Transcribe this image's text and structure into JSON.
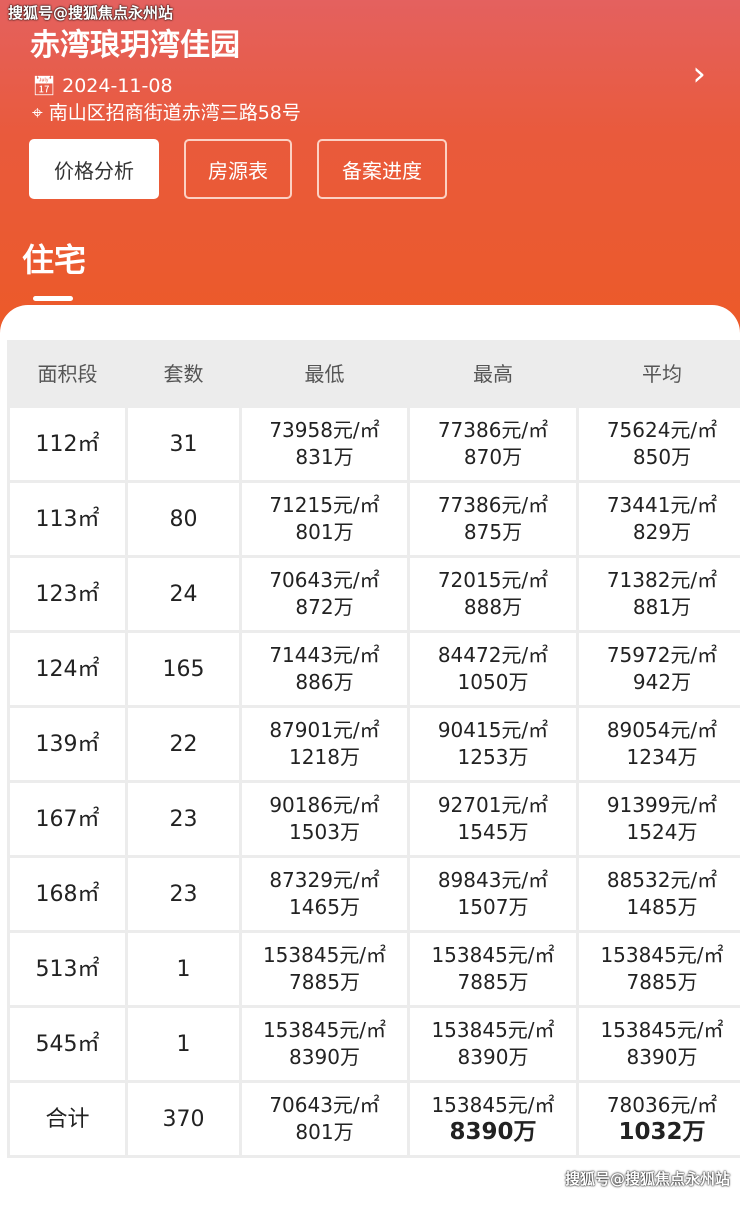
{
  "watermark": "搜狐号@搜狐焦点永州站",
  "project": {
    "title": "赤湾琅玥湾佳园",
    "date": "2024-11-08",
    "address": "南山区招商街道赤湾三路58号"
  },
  "buttons": [
    "价格分析",
    "房源表",
    "备案进度"
  ],
  "tab": "住宅",
  "colors": {
    "header_gradient_top": "#e4615f",
    "header_gradient_bottom": "#ec5a28"
  },
  "table": {
    "headers": [
      "面积段",
      "套数",
      "最低",
      "最高",
      "平均"
    ],
    "rows": [
      [
        "112㎡",
        "31",
        "73958元/㎡",
        "831万",
        "77386元/㎡",
        "870万",
        "75624元/㎡",
        "850万"
      ],
      [
        "113㎡",
        "80",
        "71215元/㎡",
        "801万",
        "77386元/㎡",
        "875万",
        "73441元/㎡",
        "829万"
      ],
      [
        "123㎡",
        "24",
        "70643元/㎡",
        "872万",
        "72015元/㎡",
        "888万",
        "71382元/㎡",
        "881万"
      ],
      [
        "124㎡",
        "165",
        "71443元/㎡",
        "886万",
        "84472元/㎡",
        "1050万",
        "75972元/㎡",
        "942万"
      ],
      [
        "139㎡",
        "22",
        "87901元/㎡",
        "1218万",
        "90415元/㎡",
        "1253万",
        "89054元/㎡",
        "1234万"
      ],
      [
        "167㎡",
        "23",
        "90186元/㎡",
        "1503万",
        "92701元/㎡",
        "1545万",
        "91399元/㎡",
        "1524万"
      ],
      [
        "168㎡",
        "23",
        "87329元/㎡",
        "1465万",
        "89843元/㎡",
        "1507万",
        "88532元/㎡",
        "1485万"
      ],
      [
        "513㎡",
        "1",
        "153845元/㎡",
        "7885万",
        "153845元/㎡",
        "7885万",
        "153845元/㎡",
        "7885万"
      ],
      [
        "545㎡",
        "1",
        "153845元/㎡",
        "8390万",
        "153845元/㎡",
        "8390万",
        "153845元/㎡",
        "8390万"
      ],
      [
        "合计",
        "370",
        "70643元/㎡",
        "801万",
        "153845元/㎡",
        "8390万",
        "78036元/㎡",
        "1032万"
      ]
    ]
  }
}
